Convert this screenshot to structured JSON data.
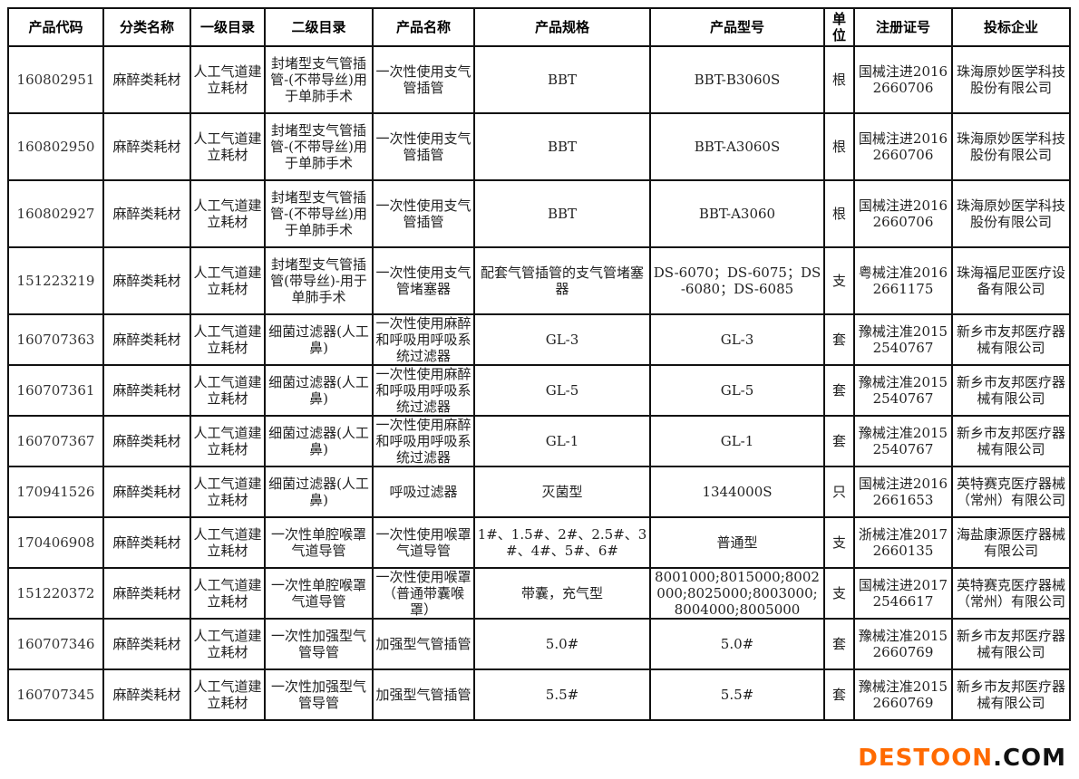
{
  "headers": [
    "产品代码",
    "分类名称",
    "一级目录",
    "二级目录",
    "产品名称",
    "产品规格",
    "产品型号",
    "单位",
    "注册证号",
    "投标企业"
  ],
  "rows": [
    [
      "160802951",
      "麻醉类耗材",
      "人工气道建立耗材",
      "封堵型支气管插管-(不带导丝)用于单肺手术",
      "一次性使用支气管插管",
      "BBT",
      "BBT-B3060S",
      "根",
      "国械注进20162660706",
      "珠海原妙医学科技股份有限公司"
    ],
    [
      "160802950",
      "麻醉类耗材",
      "人工气道建立耗材",
      "封堵型支气管插管-(不带导丝)用于单肺手术",
      "一次性使用支气管插管",
      "BBT",
      "BBT-A3060S",
      "根",
      "国械注进20162660706",
      "珠海原妙医学科技股份有限公司"
    ],
    [
      "160802927",
      "麻醉类耗材",
      "人工气道建立耗材",
      "封堵型支气管插管-(不带导丝)用于单肺手术",
      "一次性使用支气管插管",
      "BBT",
      "BBT-A3060",
      "根",
      "国械注进20162660706",
      "珠海原妙医学科技股份有限公司"
    ],
    [
      "151223219",
      "麻醉类耗材",
      "人工气道建立耗材",
      "封堵型支气管插管(带导丝)-用于单肺手术",
      "一次性使用支气管堵塞器",
      "配套气管插管的支气管堵塞器",
      "DS-6070；DS-6075；DS-6080；DS-6085",
      "支",
      "粤械注准20162661175",
      "珠海福尼亚医疗设备有限公司"
    ],
    [
      "160707363",
      "麻醉类耗材",
      "人工气道建立耗材",
      "细菌过滤器(人工鼻)",
      "一次性使用麻醉和呼吸用呼吸系统过滤器",
      "GL-3",
      "GL-3",
      "套",
      "豫械注准20152540767",
      "新乡市友邦医疗器械有限公司"
    ],
    [
      "160707361",
      "麻醉类耗材",
      "人工气道建立耗材",
      "细菌过滤器(人工鼻)",
      "一次性使用麻醉和呼吸用呼吸系统过滤器",
      "GL-5",
      "GL-5",
      "套",
      "豫械注准20152540767",
      "新乡市友邦医疗器械有限公司"
    ],
    [
      "160707367",
      "麻醉类耗材",
      "人工气道建立耗材",
      "细菌过滤器(人工鼻)",
      "一次性使用麻醉和呼吸用呼吸系统过滤器",
      "GL-1",
      "GL-1",
      "套",
      "豫械注准20152540767",
      "新乡市友邦医疗器械有限公司"
    ],
    [
      "170941526",
      "麻醉类耗材",
      "人工气道建立耗材",
      "细菌过滤器(人工鼻)",
      "呼吸过滤器",
      "灭菌型",
      "1344000S",
      "只",
      "国械注进20162661653",
      "英特赛克医疗器械（常州）有限公司"
    ],
    [
      "170406908",
      "麻醉类耗材",
      "人工气道建立耗材",
      "一次性单腔喉罩气道导管",
      "一次性使用喉罩气道导管",
      "1#、1.5#、2#、2.5#、3#、4#、5#、6#",
      "普通型",
      "支",
      "浙械注准20172660135",
      "海盐康源医疗器械有限公司"
    ],
    [
      "151220372",
      "麻醉类耗材",
      "人工气道建立耗材",
      "一次性单腔喉罩气道导管",
      "一次性使用喉罩（普通带囊喉罩）",
      "带囊，充气型",
      "8001000;8015000;8002000;8025000;8003000;8004000;8005000",
      "支",
      "国械注进20172546617",
      "英特赛克医疗器械（常州）有限公司"
    ],
    [
      "160707346",
      "麻醉类耗材",
      "人工气道建立耗材",
      "一次性加强型气管导管",
      "加强型气管插管",
      "5.0#",
      "5.0#",
      "套",
      "豫械注准20152660769",
      "新乡市友邦医疗器械有限公司"
    ],
    [
      "160707345",
      "麻醉类耗材",
      "人工气道建立耗材",
      "一次性加强型气管导管",
      "加强型气管插管",
      "5.5#",
      "5.5#",
      "套",
      "豫械注准20152660769",
      "新乡市友邦医疗器械有限公司"
    ]
  ],
  "watermark": {
    "part1": "DESTOON",
    "part2": ".COM",
    "accent": "#ff6a00"
  }
}
